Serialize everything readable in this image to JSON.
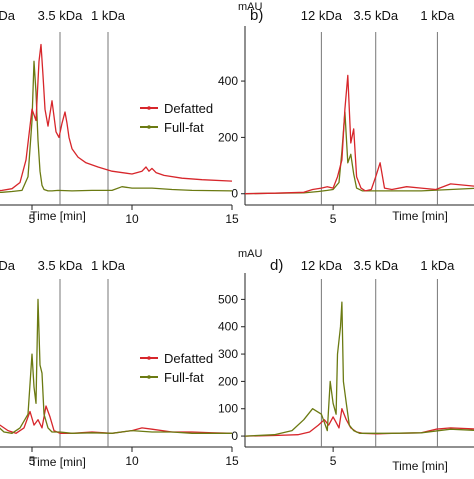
{
  "colors": {
    "defatted": "#d7262b",
    "fullfat": "#6b7a12",
    "axis": "#222222",
    "marker": "#777777"
  },
  "chart_data": [
    {
      "type": "line",
      "panel": "a",
      "ylabel": "",
      "xlabel": "Time [min]",
      "xlim": [
        3.0,
        15.0
      ],
      "ylim": [
        -40,
        560
      ],
      "xticks": [
        5,
        10,
        15
      ],
      "xtick_labels": [
        "5",
        "10",
        "15"
      ],
      "yticks": [],
      "ytick_labels": [],
      "markers": [
        {
          "x": 3.35,
          "label": "Da"
        },
        {
          "x": 6.4,
          "label": "3.5 kDa"
        },
        {
          "x": 8.8,
          "label": "1 kDa"
        }
      ],
      "legend": {
        "placement": "center-right",
        "entries": [
          "Defatted",
          "Full-fat"
        ]
      },
      "series": [
        {
          "name": "Defatted",
          "color_key": "defatted",
          "x": [
            3.0,
            3.5,
            4.0,
            4.4,
            4.7,
            5.0,
            5.2,
            5.35,
            5.45,
            5.55,
            5.65,
            5.8,
            6.0,
            6.2,
            6.35,
            6.5,
            6.65,
            6.75,
            6.85,
            7.0,
            7.3,
            7.7,
            8.3,
            9.0,
            10.0,
            10.5,
            10.7,
            10.85,
            11.0,
            11.2,
            11.6,
            12.5,
            13.5,
            15.0
          ],
          "y": [
            10,
            12,
            18,
            40,
            120,
            300,
            260,
            470,
            530,
            420,
            300,
            240,
            330,
            220,
            200,
            250,
            290,
            250,
            200,
            160,
            130,
            110,
            95,
            80,
            70,
            80,
            95,
            80,
            90,
            75,
            65,
            55,
            50,
            45
          ]
        },
        {
          "name": "Full-fat",
          "color_key": "fullfat",
          "x": [
            3.0,
            3.5,
            4.0,
            4.5,
            4.8,
            5.0,
            5.1,
            5.2,
            5.3,
            5.4,
            5.5,
            5.6,
            5.8,
            6.0,
            6.3,
            7.0,
            8.0,
            9.0,
            9.5,
            10.0,
            11.0,
            12.0,
            13.0,
            15.0
          ],
          "y": [
            5,
            5,
            8,
            12,
            60,
            260,
            470,
            360,
            190,
            80,
            30,
            15,
            10,
            10,
            12,
            10,
            12,
            12,
            25,
            20,
            20,
            15,
            12,
            10
          ]
        }
      ]
    },
    {
      "type": "line",
      "panel": "b",
      "panel_label": "b)",
      "ylabel": "mAU",
      "xlabel": "Time [min]",
      "xlim": [
        2.0,
        10.0
      ],
      "ylim": [
        -40,
        560
      ],
      "xticks": [
        5
      ],
      "xtick_labels": [
        "5"
      ],
      "yticks": [
        0,
        200,
        400
      ],
      "ytick_labels": [
        "0",
        "200",
        "400"
      ],
      "markers": [
        {
          "x": 4.6,
          "label": "12 kDa"
        },
        {
          "x": 6.45,
          "label": "3.5 kDa"
        },
        {
          "x": 8.55,
          "label": "1 kDa"
        }
      ],
      "series": [
        {
          "name": "Defatted",
          "color_key": "defatted",
          "x": [
            2.0,
            3.0,
            4.0,
            4.3,
            4.6,
            4.8,
            5.0,
            5.15,
            5.3,
            5.4,
            5.5,
            5.6,
            5.7,
            5.8,
            5.95,
            6.1,
            6.3,
            6.45,
            6.6,
            6.75,
            7.0,
            7.5,
            8.0,
            8.5,
            9.0,
            10.0
          ],
          "y": [
            0,
            2,
            5,
            15,
            20,
            25,
            20,
            60,
            120,
            300,
            420,
            180,
            230,
            60,
            20,
            10,
            15,
            60,
            110,
            20,
            15,
            25,
            20,
            15,
            35,
            25
          ]
        },
        {
          "name": "Full-fat",
          "color_key": "fullfat",
          "x": [
            2.0,
            3.0,
            4.0,
            4.5,
            4.8,
            5.0,
            5.2,
            5.3,
            5.4,
            5.5,
            5.6,
            5.7,
            5.8,
            6.0,
            7.0,
            8.0,
            9.0,
            10.0
          ],
          "y": [
            0,
            2,
            3,
            8,
            12,
            15,
            40,
            150,
            290,
            110,
            140,
            70,
            20,
            10,
            10,
            10,
            15,
            20
          ]
        }
      ]
    },
    {
      "type": "line",
      "panel": "c",
      "ylabel": "",
      "xlabel": "Time [min]",
      "xlim": [
        3.0,
        15.0
      ],
      "ylim": [
        -40,
        560
      ],
      "xticks": [
        5,
        10,
        15
      ],
      "xtick_labels": [
        "5",
        "10",
        "15"
      ],
      "yticks": [],
      "ytick_labels": [],
      "markers": [
        {
          "x": 3.35,
          "label": "Da"
        },
        {
          "x": 6.4,
          "label": "3.5 kDa"
        },
        {
          "x": 8.8,
          "label": "1 kDa"
        }
      ],
      "legend": {
        "placement": "center-right",
        "entries": [
          "Defatted",
          "Full-fat"
        ]
      },
      "series": [
        {
          "name": "Defatted",
          "color_key": "defatted",
          "x": [
            3.0,
            3.4,
            3.8,
            4.2,
            4.6,
            4.9,
            5.1,
            5.3,
            5.5,
            5.7,
            5.9,
            6.1,
            6.4,
            7.0,
            8.0,
            9.0,
            10.0,
            10.5,
            11.0,
            12.0,
            13.0,
            14.0,
            15.0
          ],
          "y": [
            30,
            40,
            20,
            10,
            30,
            90,
            40,
            60,
            30,
            110,
            70,
            20,
            10,
            10,
            15,
            10,
            20,
            30,
            25,
            15,
            15,
            12,
            10
          ]
        },
        {
          "name": "Full-fat",
          "color_key": "fullfat",
          "x": [
            3.0,
            3.3,
            3.6,
            4.0,
            4.4,
            4.8,
            5.0,
            5.1,
            5.2,
            5.3,
            5.4,
            5.5,
            5.6,
            5.8,
            6.0,
            6.4,
            7.0,
            8.0,
            9.0,
            10.0,
            11.0,
            12.0,
            13.0,
            15.0
          ],
          "y": [
            20,
            35,
            15,
            10,
            30,
            80,
            300,
            180,
            120,
            500,
            260,
            230,
            80,
            30,
            15,
            15,
            10,
            12,
            10,
            20,
            15,
            15,
            10,
            10
          ]
        }
      ]
    },
    {
      "type": "line",
      "panel": "d",
      "panel_label": "d)",
      "ylabel": "mAU",
      "xlabel": "Time [min]",
      "xlim": [
        2.0,
        10.0
      ],
      "ylim": [
        -40,
        560
      ],
      "xticks": [
        5
      ],
      "xtick_labels": [
        "5"
      ],
      "yticks": [
        0,
        100,
        200,
        300,
        400,
        500
      ],
      "ytick_labels": [
        "0",
        "100",
        "200",
        "300",
        "400",
        "500"
      ],
      "markers": [
        {
          "x": 4.6,
          "label": "12 kDa"
        },
        {
          "x": 6.45,
          "label": "3.5 kDa"
        },
        {
          "x": 8.55,
          "label": "1 kDa"
        }
      ],
      "series": [
        {
          "name": "Defatted",
          "color_key": "defatted",
          "x": [
            2.0,
            3.0,
            3.8,
            4.2,
            4.5,
            4.7,
            4.85,
            5.0,
            5.1,
            5.2,
            5.3,
            5.45,
            5.6,
            5.8,
            6.0,
            6.5,
            7.0,
            8.0,
            8.5,
            9.0,
            10.0
          ],
          "y": [
            0,
            2,
            5,
            15,
            40,
            60,
            40,
            70,
            50,
            30,
            100,
            60,
            30,
            15,
            10,
            8,
            10,
            12,
            25,
            30,
            25
          ]
        },
        {
          "name": "Full-fat",
          "color_key": "fullfat",
          "x": [
            2.0,
            3.0,
            3.6,
            4.0,
            4.3,
            4.6,
            4.8,
            4.9,
            5.0,
            5.1,
            5.15,
            5.25,
            5.3,
            5.35,
            5.45,
            5.55,
            5.7,
            5.9,
            6.2,
            7.0,
            8.0,
            9.0,
            10.0
          ],
          "y": [
            0,
            5,
            20,
            60,
            100,
            80,
            20,
            200,
            120,
            80,
            300,
            400,
            490,
            200,
            120,
            40,
            20,
            10,
            10,
            10,
            12,
            25,
            20
          ]
        }
      ]
    }
  ]
}
